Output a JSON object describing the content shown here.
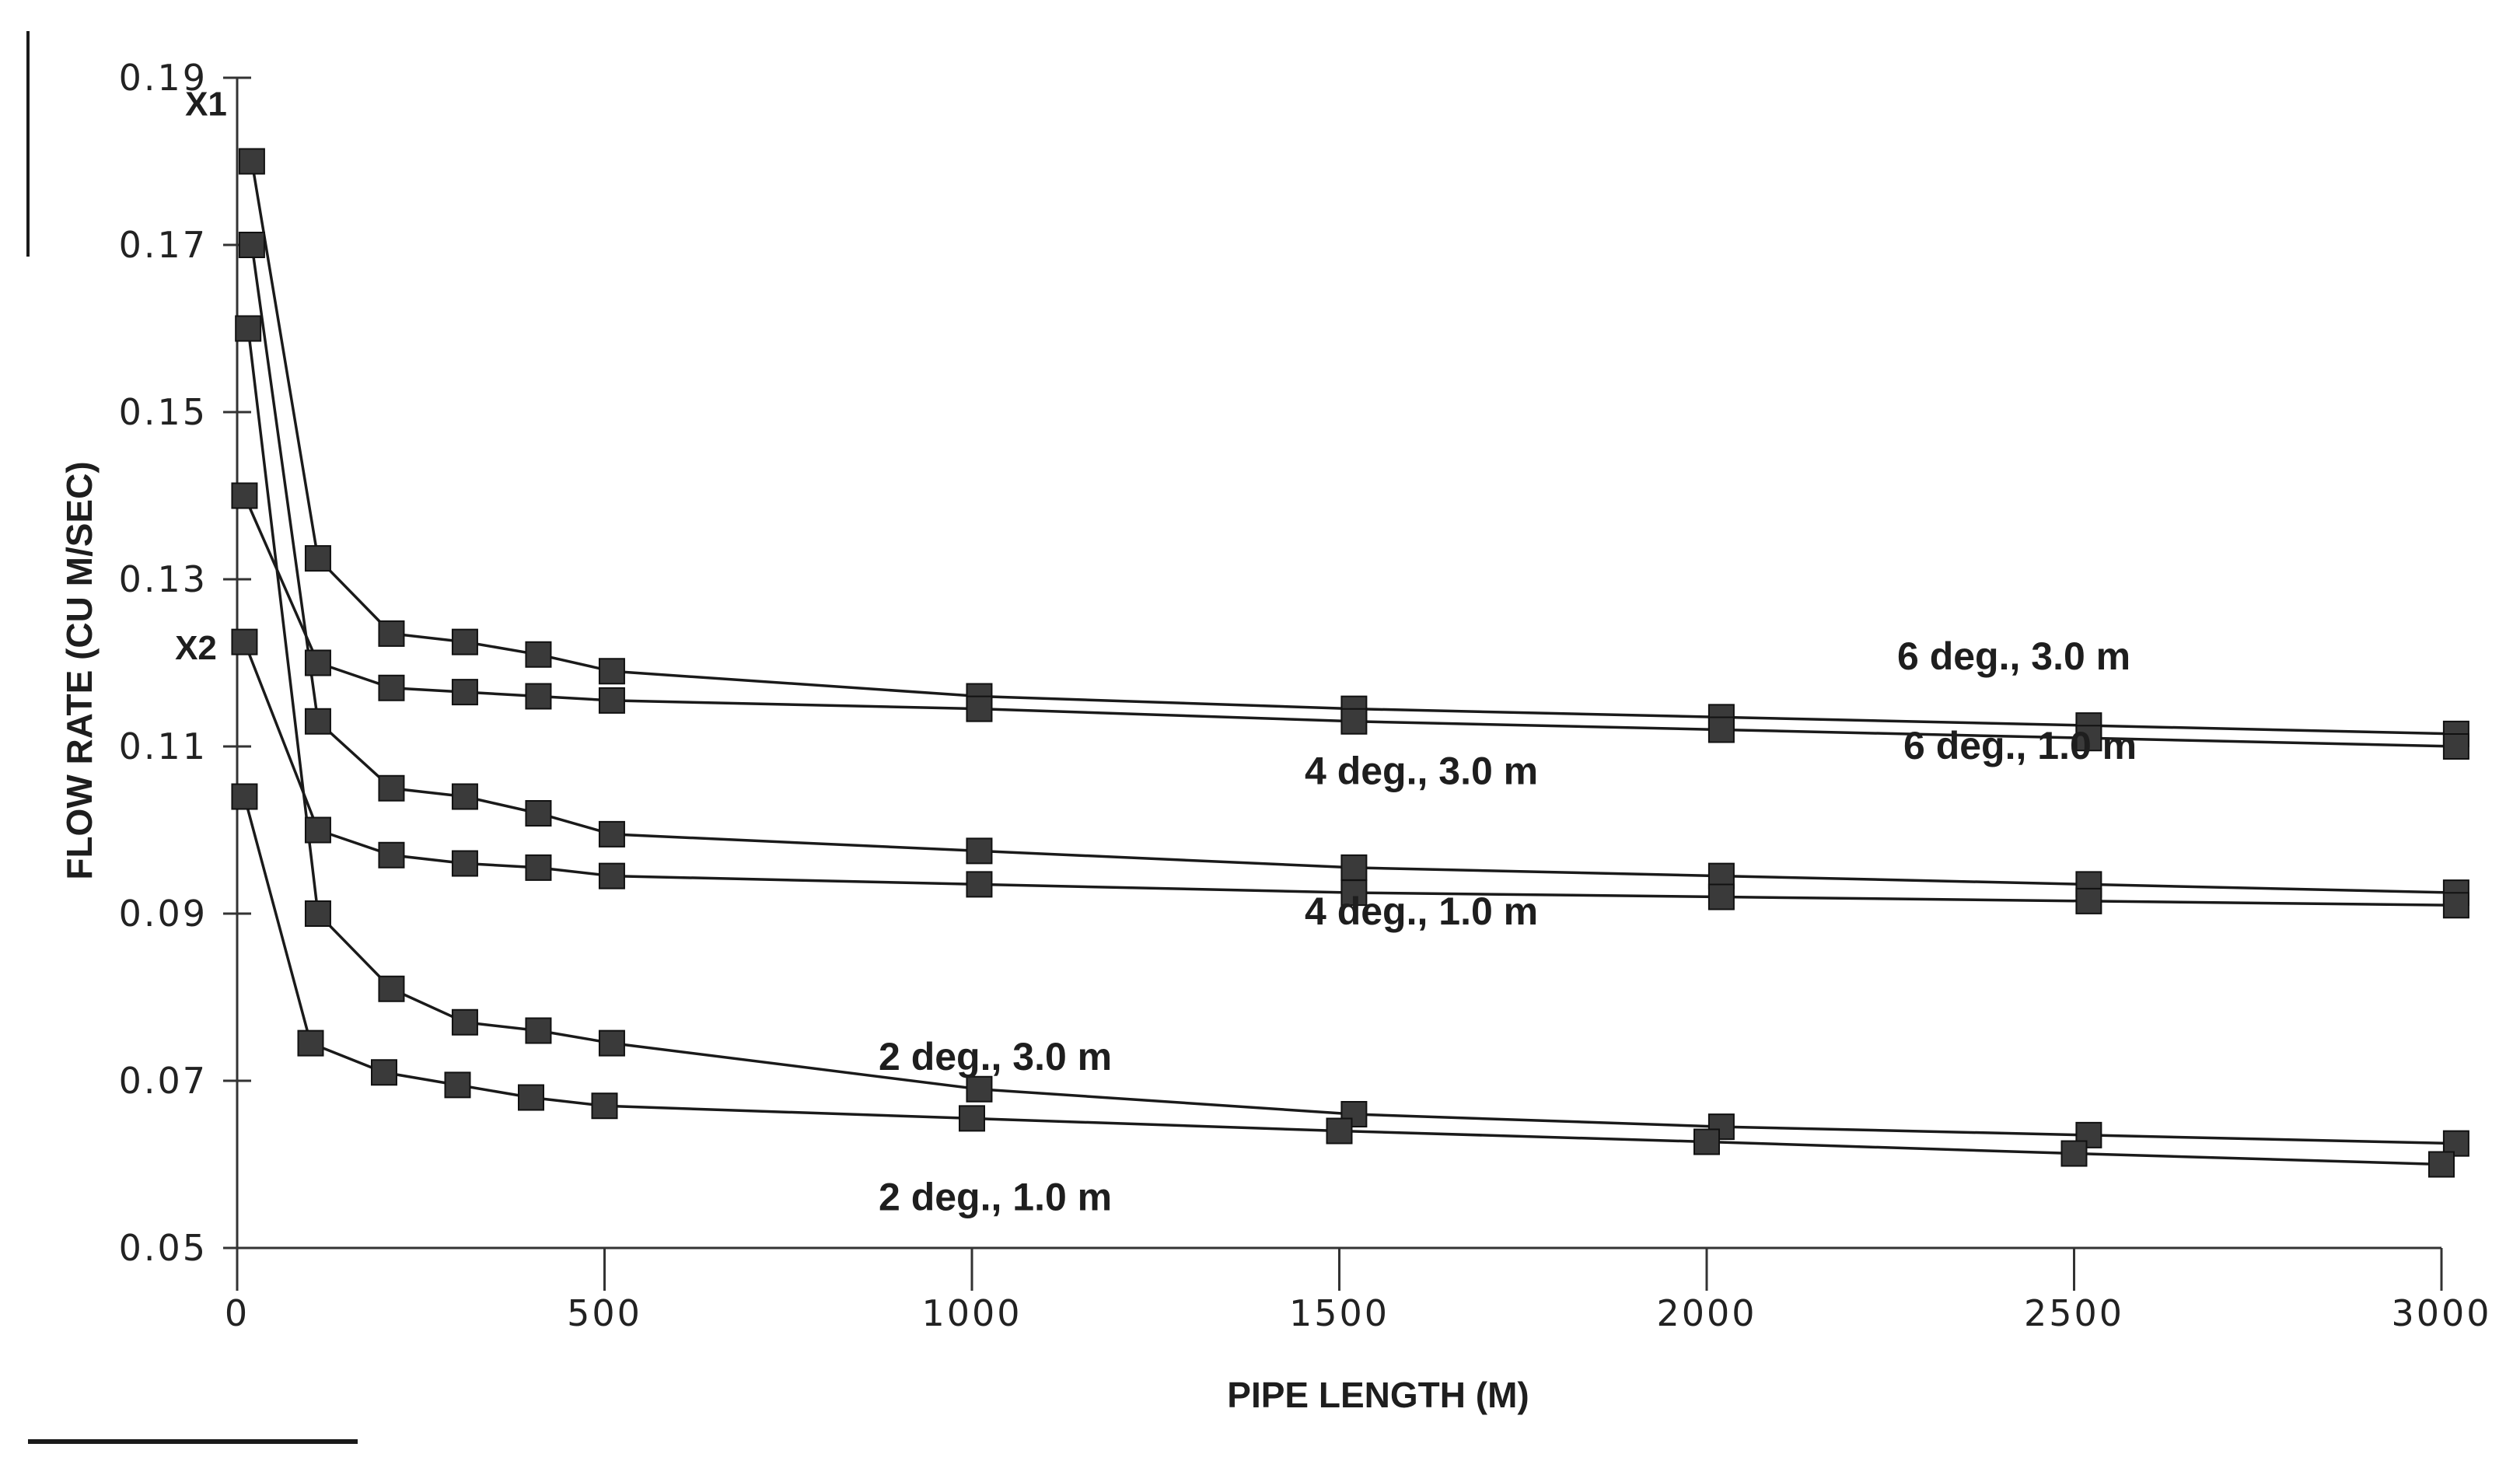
{
  "chart_data": {
    "type": "line",
    "title": "",
    "xlabel": "PIPE LENGTH (M)",
    "ylabel": "FLOW RATE (CU M/SEC)",
    "xlim": [
      0,
      3000
    ],
    "ylim": [
      0.05,
      0.19
    ],
    "x_ticks": [
      "0",
      "500",
      "1000",
      "1500",
      "2000",
      "2500",
      "3000"
    ],
    "y_ticks": [
      "0.05",
      "0.07",
      "0.09",
      "0.11",
      "0.13",
      "0.15",
      "0.17",
      "0.19"
    ],
    "grid": false,
    "annotations": [
      "X1",
      "X2"
    ],
    "series": [
      {
        "name": "6 deg., 3.0 m",
        "x": [
          20,
          110,
          210,
          310,
          410,
          510,
          1010,
          1520,
          2020,
          2520,
          3020
        ],
        "y": [
          0.18,
          0.1325,
          0.1235,
          0.1225,
          0.121,
          0.119,
          0.116,
          0.1145,
          0.1135,
          0.1125,
          0.1115
        ]
      },
      {
        "name": "6 deg., 1.0 m",
        "x": [
          10,
          110,
          210,
          310,
          410,
          510,
          1010,
          1520,
          2020,
          2520,
          3020
        ],
        "y": [
          0.14,
          0.12,
          0.117,
          0.1165,
          0.116,
          0.1155,
          0.1145,
          0.113,
          0.112,
          0.111,
          0.11
        ]
      },
      {
        "name": "4 deg., 3.0 m",
        "x": [
          20,
          110,
          210,
          310,
          410,
          510,
          1010,
          1520,
          2020,
          2520,
          3020
        ],
        "y": [
          0.17,
          0.113,
          0.105,
          0.104,
          0.102,
          0.0995,
          0.0975,
          0.0955,
          0.0945,
          0.0935,
          0.0925
        ]
      },
      {
        "name": "4 deg., 1.0 m",
        "x": [
          10,
          110,
          210,
          310,
          410,
          510,
          1010,
          1520,
          2020,
          2520,
          3020
        ],
        "y": [
          0.1225,
          0.1,
          0.097,
          0.096,
          0.0955,
          0.0945,
          0.0935,
          0.0925,
          0.092,
          0.0915,
          0.091
        ]
      },
      {
        "name": "2 deg., 3.0 m",
        "x": [
          15,
          110,
          210,
          310,
          410,
          510,
          1010,
          1520,
          2020,
          2520,
          3020
        ],
        "y": [
          0.16,
          0.09,
          0.081,
          0.077,
          0.076,
          0.0745,
          0.069,
          0.066,
          0.0645,
          0.0635,
          0.0625
        ]
      },
      {
        "name": "2 deg., 1.0 m",
        "x": [
          10,
          100,
          200,
          300,
          400,
          500,
          1000,
          1500,
          2000,
          2500,
          3000
        ],
        "y": [
          0.104,
          0.0745,
          0.071,
          0.0695,
          0.068,
          0.067,
          0.0655,
          0.064,
          0.0627,
          0.0613,
          0.06
        ]
      }
    ]
  }
}
